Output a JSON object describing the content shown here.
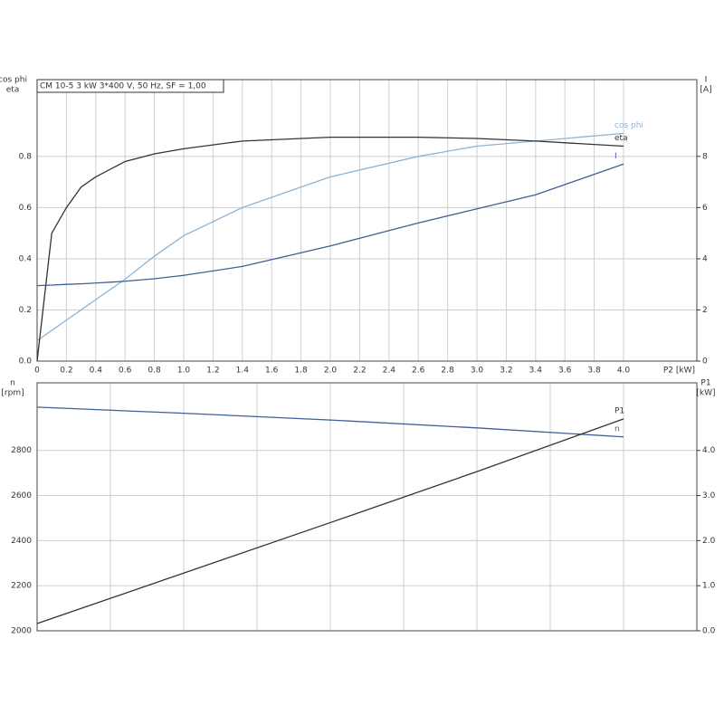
{
  "chart_data": [
    {
      "type": "line",
      "title": "CM 10-5   3 kW   3*400 V, 50 Hz, SF = 1,00",
      "ylabel": [
        "cos phi",
        "eta"
      ],
      "y2label": [
        "I",
        "[A]"
      ],
      "xlabel": "P2 [kW]",
      "x": [
        0,
        0.1,
        0.2,
        0.3,
        0.4,
        0.6,
        0.8,
        1.0,
        1.4,
        2.0,
        2.6,
        3.0,
        3.4,
        4.0
      ],
      "series": [
        {
          "name": "cos phi",
          "color": "#8fb3d6",
          "values": [
            0.08,
            0.12,
            0.16,
            0.2,
            0.24,
            0.32,
            0.41,
            0.49,
            0.6,
            0.72,
            0.8,
            0.84,
            0.86,
            0.89
          ]
        },
        {
          "name": "eta",
          "color": "#333333",
          "values": [
            0,
            0.5,
            0.6,
            0.68,
            0.72,
            0.78,
            0.81,
            0.83,
            0.86,
            0.875,
            0.875,
            0.87,
            0.86,
            0.84
          ]
        },
        {
          "name": "I",
          "color": "#3f5f94",
          "axis": "y2",
          "values": [
            2.95,
            2.97,
            3.0,
            3.02,
            3.05,
            3.12,
            3.22,
            3.35,
            3.7,
            4.5,
            5.4,
            5.95,
            6.5,
            7.7
          ]
        }
      ],
      "xlim": [
        0,
        4.5
      ],
      "xticks": [
        0,
        0.2,
        0.4,
        0.6,
        0.8,
        {
          "value": 1.0,
          "label": "1.0"
        },
        1.2,
        1.4,
        1.6,
        1.8,
        {
          "value": 2.0,
          "label": "2.0"
        },
        2.2,
        2.4,
        2.6,
        2.8,
        {
          "value": 3.0,
          "label": "3.0"
        },
        3.2,
        3.4,
        3.6,
        3.8,
        {
          "value": 4.0,
          "label": "4.0"
        }
      ],
      "ylim": [
        0,
        1.1
      ],
      "yticks": [
        {
          "value": 0,
          "label": "0.0"
        },
        0.2,
        0.4,
        0.6,
        0.8
      ],
      "y2lim": [
        0,
        11
      ],
      "y2ticks": [
        0,
        2,
        4,
        6,
        8
      ],
      "grid": true
    },
    {
      "type": "line",
      "ylabel": [
        "n",
        "[rpm]"
      ],
      "y2label": [
        "P1",
        "[kW]"
      ],
      "x": [
        0,
        1,
        2,
        3,
        4
      ],
      "series": [
        {
          "name": "n",
          "color": "#3f5f94",
          "values": [
            2992,
            2965,
            2935,
            2900,
            2860
          ]
        },
        {
          "name": "P1",
          "color": "#333333",
          "axis": "y2",
          "values": [
            0.16,
            1.28,
            2.4,
            3.53,
            4.7
          ]
        }
      ],
      "xlim": [
        0,
        4.5
      ],
      "xgrid": [
        0,
        0.5,
        1,
        1.5,
        2,
        2.5,
        3,
        3.5,
        4
      ],
      "ylim": [
        2000,
        3100
      ],
      "yticks": [
        2000,
        2200,
        2400,
        2600,
        2800
      ],
      "y2lim": [
        0,
        5.5
      ],
      "y2ticks": [
        {
          "value": 0,
          "label": "0.0"
        },
        {
          "value": 1,
          "label": "1.0"
        },
        {
          "value": 2,
          "label": "2.0"
        },
        {
          "value": 3,
          "label": "3.0"
        },
        {
          "value": 4,
          "label": "4.0"
        }
      ],
      "grid": true
    }
  ]
}
